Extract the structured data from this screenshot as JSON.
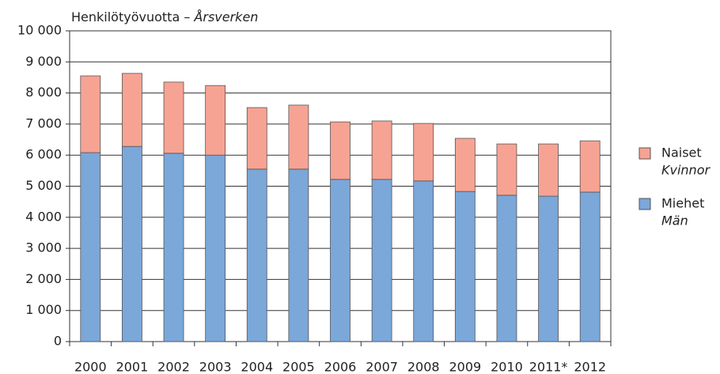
{
  "chart_data": {
    "type": "stacked_bar",
    "title": "Henkilötyövuotta –",
    "title_italic": "Årsverken",
    "categories": [
      "2000",
      "2001",
      "2002",
      "2003",
      "2004",
      "2005",
      "2006",
      "2007",
      "2008",
      "2009",
      "2010",
      "2011*",
      "2012"
    ],
    "series": [
      {
        "name": "Miehet",
        "name_italic": "Män",
        "color": "#7ba7d9",
        "values": [
          6080,
          6280,
          6060,
          6000,
          5550,
          5550,
          5220,
          5220,
          5170,
          4830,
          4710,
          4680,
          4810
        ]
      },
      {
        "name": "Naiset",
        "name_italic": "Kvinnor",
        "color": "#f7a393",
        "values": [
          2470,
          2350,
          2290,
          2240,
          1980,
          2060,
          1850,
          1880,
          1850,
          1710,
          1650,
          1680,
          1650
        ]
      }
    ],
    "ylim": [
      0,
      10000
    ],
    "yticks": [
      0,
      {
        "value": 1000,
        "label": "1 000"
      },
      {
        "value": 2000,
        "label": "2 000"
      },
      {
        "value": 3000,
        "label": "3 000"
      },
      {
        "value": 4000,
        "label": "4 000"
      },
      {
        "value": 5000,
        "label": "5 000"
      },
      {
        "value": 6000,
        "label": "6 000"
      },
      {
        "value": 7000,
        "label": "7 000"
      },
      {
        "value": 8000,
        "label": "8 000"
      },
      {
        "value": 9000,
        "label": "9 000"
      },
      {
        "value": 10000,
        "label": "10 000"
      }
    ],
    "grid": true,
    "legend": "right"
  }
}
